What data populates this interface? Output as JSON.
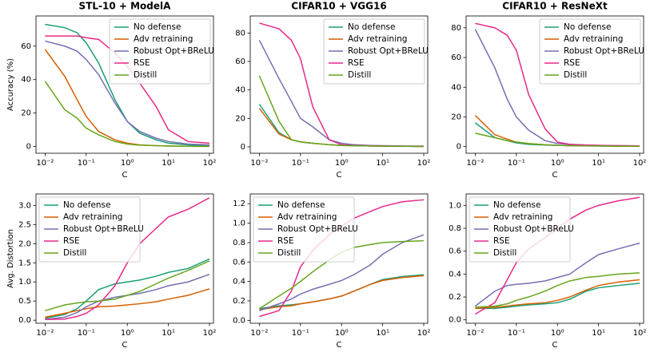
{
  "chart_data": [
    {
      "type": "line",
      "title": "STL-10 + ModelA",
      "xlabel": "C",
      "ylabel": "Accuracy (%)",
      "xscale": "log",
      "legend": "upper right",
      "x": [
        0.01,
        0.03,
        0.06,
        0.1,
        0.2,
        0.5,
        1,
        2,
        5,
        10,
        30,
        100
      ],
      "xlim": [
        0.006,
        125
      ],
      "xticks": [
        {
          "value": 0.01,
          "label": "10⁻²"
        },
        {
          "value": 0.1,
          "label": "10⁻¹"
        },
        {
          "value": 1,
          "label": "10⁰"
        },
        {
          "value": 10,
          "label": "10¹"
        },
        {
          "value": 100,
          "label": "10²"
        }
      ],
      "ylim": [
        -4,
        78
      ],
      "yticks": [
        0,
        20,
        40,
        60
      ],
      "series": [
        {
          "name": "No defense",
          "color": "#1b9e77",
          "values": [
            73,
            71,
            68,
            62,
            50,
            28,
            15,
            8,
            4,
            2,
            1,
            0.5
          ]
        },
        {
          "name": "Adv retraining",
          "color": "#d95f02",
          "values": [
            58,
            42,
            28,
            18,
            9,
            4,
            2,
            1,
            0.5,
            0.3,
            0.2,
            0.1
          ]
        },
        {
          "name": "Robust Opt+BReLU",
          "color": "#7570b3",
          "values": [
            63,
            60,
            57,
            52,
            43,
            26,
            15,
            9,
            5,
            3,
            1.5,
            1
          ]
        },
        {
          "name": "RSE",
          "color": "#e7298a",
          "values": [
            66,
            66,
            66,
            65,
            64,
            56,
            48,
            38,
            24,
            10,
            3,
            2
          ]
        },
        {
          "name": "Distill",
          "color": "#66a61e",
          "values": [
            39,
            22,
            17,
            11,
            7,
            3,
            1.5,
            0.8,
            0.5,
            0.3,
            0.2,
            0.1
          ]
        }
      ]
    },
    {
      "type": "line",
      "title": "CIFAR10 + VGG16",
      "xlabel": "C",
      "xscale": "log",
      "legend": "upper right",
      "x": [
        0.01,
        0.03,
        0.06,
        0.1,
        0.2,
        0.5,
        1,
        2,
        5,
        10,
        30,
        100
      ],
      "xlim": [
        0.006,
        125
      ],
      "xticks": [
        {
          "value": 0.01,
          "label": "10⁻²"
        },
        {
          "value": 0.1,
          "label": "10⁻¹"
        },
        {
          "value": 1,
          "label": "10⁰"
        },
        {
          "value": 10,
          "label": "10¹"
        },
        {
          "value": 100,
          "label": "10²"
        }
      ],
      "ylim": [
        -4.5,
        92
      ],
      "yticks": [
        0,
        20,
        40,
        60,
        80
      ],
      "series": [
        {
          "name": "No defense",
          "color": "#1b9e77",
          "values": [
            30,
            10,
            5,
            3.5,
            2.5,
            1.5,
            1,
            0.8,
            0.6,
            0.5,
            0.4,
            0.3
          ]
        },
        {
          "name": "Adv retraining",
          "color": "#d95f02",
          "values": [
            27,
            9,
            5,
            3.5,
            2.5,
            1.5,
            1,
            0.8,
            0.6,
            0.5,
            0.4,
            0.3
          ]
        },
        {
          "name": "Robust Opt+BReLU",
          "color": "#7570b3",
          "values": [
            75,
            48,
            32,
            20,
            14,
            5,
            2.5,
            1.5,
            1,
            0.8,
            0.6,
            0.5
          ]
        },
        {
          "name": "RSE",
          "color": "#e7298a",
          "values": [
            87,
            83,
            75,
            62,
            28,
            5,
            1.5,
            1,
            0.8,
            0.6,
            0.5,
            0.5
          ]
        },
        {
          "name": "Distill",
          "color": "#66a61e",
          "values": [
            50,
            18,
            5,
            3.5,
            2.5,
            1.5,
            1,
            0.8,
            0.6,
            0.5,
            0.4,
            0.3
          ]
        }
      ]
    },
    {
      "type": "line",
      "title": "CIFAR10 + ResNeXt",
      "xlabel": "C",
      "xscale": "log",
      "legend": "upper right",
      "x": [
        0.01,
        0.03,
        0.06,
        0.1,
        0.2,
        0.5,
        1,
        2,
        5,
        10,
        30,
        100
      ],
      "xlim": [
        0.006,
        125
      ],
      "xticks": [
        {
          "value": 0.01,
          "label": "10⁻²"
        },
        {
          "value": 0.1,
          "label": "10⁻¹"
        },
        {
          "value": 1,
          "label": "10⁰"
        },
        {
          "value": 10,
          "label": "10¹"
        },
        {
          "value": 100,
          "label": "10²"
        }
      ],
      "ylim": [
        -4.5,
        88
      ],
      "yticks": [
        0,
        20,
        40,
        60,
        80
      ],
      "series": [
        {
          "name": "No defense",
          "color": "#1b9e77",
          "values": [
            16,
            6,
            4,
            2.5,
            1.5,
            1,
            0.8,
            0.6,
            0.5,
            0.4,
            0.3,
            0.3
          ]
        },
        {
          "name": "Adv retraining",
          "color": "#d95f02",
          "values": [
            21,
            8,
            5,
            3,
            2,
            1.2,
            0.8,
            0.6,
            0.5,
            0.4,
            0.3,
            0.3
          ]
        },
        {
          "name": "Robust Opt+BReLU",
          "color": "#7570b3",
          "values": [
            79,
            53,
            32,
            20,
            11,
            4,
            2,
            1.5,
            1,
            0.8,
            0.6,
            0.5
          ]
        },
        {
          "name": "RSE",
          "color": "#e7298a",
          "values": [
            83,
            80,
            75,
            65,
            35,
            12,
            3,
            1.5,
            1,
            0.8,
            0.6,
            0.5
          ]
        },
        {
          "name": "Distill",
          "color": "#66a61e",
          "values": [
            9,
            6,
            4,
            3,
            2,
            1.2,
            0.8,
            0.6,
            0.5,
            0.4,
            0.3,
            0.3
          ]
        }
      ]
    },
    {
      "type": "line",
      "xlabel": "C",
      "ylabel": "Avg. Distortion",
      "xscale": "log",
      "legend": "upper left",
      "x": [
        0.01,
        0.03,
        0.06,
        0.1,
        0.2,
        0.5,
        1,
        2,
        5,
        10,
        30,
        100
      ],
      "xlim": [
        0.006,
        125
      ],
      "xticks": [
        {
          "value": 0.01,
          "label": "10⁻²"
        },
        {
          "value": 0.1,
          "label": "10⁻¹"
        },
        {
          "value": 1,
          "label": "10⁰"
        },
        {
          "value": 10,
          "label": "10¹"
        },
        {
          "value": 100,
          "label": "10²"
        }
      ],
      "ylim": [
        -0.08,
        3.3
      ],
      "yticks": [
        {
          "value": 0,
          "label": "0.0"
        },
        0.5,
        {
          "value": 1,
          "label": "1.0"
        },
        1.5,
        {
          "value": 2,
          "label": "2.0"
        },
        2.5,
        {
          "value": 3,
          "label": "3.0"
        }
      ],
      "series": [
        {
          "name": "No defense",
          "color": "#1b9e77",
          "values": [
            0.05,
            0.15,
            0.3,
            0.5,
            0.8,
            0.95,
            1.0,
            1.05,
            1.15,
            1.25,
            1.35,
            1.6
          ]
        },
        {
          "name": "Adv retraining",
          "color": "#d95f02",
          "values": [
            0.08,
            0.18,
            0.25,
            0.3,
            0.35,
            0.37,
            0.4,
            0.43,
            0.48,
            0.55,
            0.65,
            0.82
          ]
        },
        {
          "name": "Robust Opt+BReLU",
          "color": "#7570b3",
          "values": [
            0.02,
            0.08,
            0.2,
            0.35,
            0.5,
            0.6,
            0.65,
            0.7,
            0.8,
            0.9,
            1.0,
            1.2
          ]
        },
        {
          "name": "RSE",
          "color": "#e7298a",
          "values": [
            0.02,
            0.03,
            0.1,
            0.18,
            0.4,
            0.9,
            1.5,
            2.0,
            2.4,
            2.7,
            2.9,
            3.2
          ]
        },
        {
          "name": "Distill",
          "color": "#66a61e",
          "values": [
            0.25,
            0.4,
            0.45,
            0.48,
            0.5,
            0.55,
            0.65,
            0.75,
            0.95,
            1.1,
            1.3,
            1.55
          ]
        }
      ]
    },
    {
      "type": "line",
      "xlabel": "C",
      "xscale": "log",
      "legend": "upper left",
      "x": [
        0.01,
        0.03,
        0.06,
        0.1,
        0.2,
        0.5,
        1,
        2,
        5,
        10,
        30,
        100
      ],
      "xlim": [
        0.006,
        125
      ],
      "xticks": [
        {
          "value": 0.01,
          "label": "10⁻²"
        },
        {
          "value": 0.1,
          "label": "10⁻¹"
        },
        {
          "value": 1,
          "label": "10⁰"
        },
        {
          "value": 10,
          "label": "10¹"
        },
        {
          "value": 100,
          "label": "10²"
        }
      ],
      "ylim": [
        -0.03,
        1.3
      ],
      "yticks": [
        {
          "value": 0,
          "label": "0.0"
        },
        0.2,
        0.4,
        0.6,
        0.8,
        {
          "value": 1,
          "label": "1.0"
        },
        1.2
      ],
      "series": [
        {
          "name": "No defense",
          "color": "#1b9e77",
          "values": [
            0.12,
            0.15,
            0.16,
            0.17,
            0.19,
            0.22,
            0.25,
            0.3,
            0.37,
            0.42,
            0.45,
            0.47
          ]
        },
        {
          "name": "Adv retraining",
          "color": "#d95f02",
          "values": [
            0.11,
            0.14,
            0.15,
            0.17,
            0.19,
            0.22,
            0.25,
            0.3,
            0.37,
            0.41,
            0.44,
            0.46
          ]
        },
        {
          "name": "Robust Opt+BReLU",
          "color": "#7570b3",
          "values": [
            0.1,
            0.17,
            0.22,
            0.27,
            0.32,
            0.37,
            0.41,
            0.47,
            0.57,
            0.68,
            0.8,
            0.88
          ]
        },
        {
          "name": "RSE",
          "color": "#e7298a",
          "values": [
            0.04,
            0.1,
            0.3,
            0.55,
            0.72,
            0.88,
            0.97,
            1.05,
            1.12,
            1.17,
            1.22,
            1.24
          ]
        },
        {
          "name": "Distill",
          "color": "#66a61e",
          "values": [
            0.12,
            0.25,
            0.33,
            0.4,
            0.5,
            0.62,
            0.7,
            0.75,
            0.78,
            0.8,
            0.81,
            0.82
          ]
        }
      ]
    },
    {
      "type": "line",
      "xlabel": "C",
      "xscale": "log",
      "legend": "upper left",
      "x": [
        0.01,
        0.03,
        0.06,
        0.1,
        0.2,
        0.5,
        1,
        2,
        5,
        10,
        30,
        100
      ],
      "xlim": [
        0.006,
        125
      ],
      "xticks": [
        {
          "value": 0.01,
          "label": "10⁻²"
        },
        {
          "value": 0.1,
          "label": "10⁻¹"
        },
        {
          "value": 1,
          "label": "10⁰"
        },
        {
          "value": 10,
          "label": "10¹"
        },
        {
          "value": 100,
          "label": "10²"
        }
      ],
      "ylim": [
        -0.03,
        1.1
      ],
      "yticks": [
        {
          "value": 0,
          "label": "0.0"
        },
        0.2,
        0.4,
        0.6,
        0.8,
        {
          "value": 1,
          "label": "1.0"
        }
      ],
      "series": [
        {
          "name": "No defense",
          "color": "#1b9e77",
          "values": [
            0.1,
            0.1,
            0.11,
            0.12,
            0.13,
            0.14,
            0.15,
            0.18,
            0.25,
            0.28,
            0.3,
            0.32
          ]
        },
        {
          "name": "Adv retraining",
          "color": "#d95f02",
          "values": [
            0.1,
            0.11,
            0.12,
            0.13,
            0.14,
            0.15,
            0.17,
            0.2,
            0.26,
            0.3,
            0.33,
            0.35
          ]
        },
        {
          "name": "Robust Opt+BReLU",
          "color": "#7570b3",
          "values": [
            0.12,
            0.25,
            0.3,
            0.31,
            0.32,
            0.34,
            0.37,
            0.4,
            0.5,
            0.57,
            0.62,
            0.67
          ]
        },
        {
          "name": "RSE",
          "color": "#e7298a",
          "values": [
            0.05,
            0.15,
            0.35,
            0.5,
            0.62,
            0.72,
            0.8,
            0.88,
            0.96,
            1.0,
            1.04,
            1.07
          ]
        },
        {
          "name": "Distill",
          "color": "#66a61e",
          "values": [
            0.11,
            0.12,
            0.14,
            0.17,
            0.2,
            0.25,
            0.3,
            0.34,
            0.37,
            0.38,
            0.4,
            0.41
          ]
        }
      ]
    }
  ]
}
